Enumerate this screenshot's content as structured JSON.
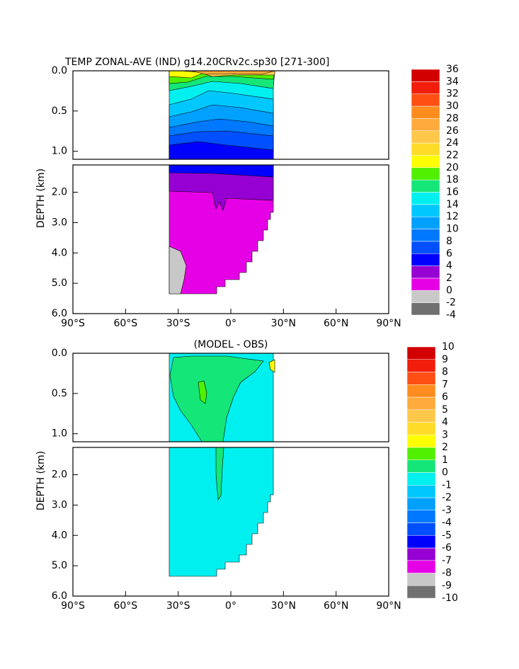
{
  "chart_data": [
    {
      "type": "contour",
      "title": "TEMP ZONAL-AVE (IND) g14.20CRv2c.sp30 [271-300]",
      "ylabel": "DEPTH (km)",
      "xlim": [
        -90,
        90
      ],
      "xticks": [
        {
          "value": -90,
          "label": "90°S"
        },
        {
          "value": -60,
          "label": "60°S"
        },
        {
          "value": -30,
          "label": "30°S"
        },
        {
          "value": 0,
          "label": "0°"
        },
        {
          "value": 30,
          "label": "30°N"
        },
        {
          "value": 60,
          "label": "60°N"
        },
        {
          "value": 90,
          "label": "90°N"
        }
      ],
      "panels": [
        {
          "ylim": [
            0,
            1.1
          ],
          "yticks": [
            {
              "value": 0,
              "label": "0.0"
            },
            0.5,
            {
              "value": 1,
              "label": "1.0"
            }
          ]
        },
        {
          "ylim": [
            1.1,
            6
          ],
          "yticks": [
            {
              "value": 2,
              "label": "2.0"
            },
            {
              "value": 3,
              "label": "3.0"
            },
            {
              "value": 4,
              "label": "4.0"
            },
            {
              "value": 5,
              "label": "5.0"
            },
            {
              "value": 6,
              "label": "6.0"
            }
          ]
        }
      ],
      "colorbar": {
        "levels": [
          -4,
          -2,
          0,
          2,
          4,
          6,
          8,
          10,
          12,
          14,
          16,
          18,
          20,
          22,
          24,
          26,
          28,
          30,
          32,
          34,
          36
        ],
        "colors": [
          "#707070",
          "#c8c8c8",
          "#e600e6",
          "#9600d2",
          "#0000ff",
          "#0050ff",
          "#0078ff",
          "#00a0ff",
          "#00c8ff",
          "#00f0f0",
          "#14e678",
          "#50f000",
          "#ffff00",
          "#ffdc28",
          "#ffc84a",
          "#ffaa3c",
          "#ff8c1e",
          "#ff5014",
          "#f01e0a",
          "#d20000"
        ]
      }
    },
    {
      "type": "contour",
      "title": "(MODEL - OBS)",
      "ylabel": "DEPTH (km)",
      "xlim": [
        -90,
        90
      ],
      "xticks": [
        {
          "value": -90,
          "label": "90°S"
        },
        {
          "value": -60,
          "label": "60°S"
        },
        {
          "value": -30,
          "label": "30°S"
        },
        {
          "value": 0,
          "label": "0°"
        },
        {
          "value": 30,
          "label": "30°N"
        },
        {
          "value": 60,
          "label": "60°N"
        },
        {
          "value": 90,
          "label": "90°N"
        }
      ],
      "panels": [
        {
          "ylim": [
            0,
            1.1
          ],
          "yticks": [
            {
              "value": 0,
              "label": "0.0"
            },
            0.5,
            {
              "value": 1,
              "label": "1.0"
            }
          ]
        },
        {
          "ylim": [
            1.1,
            6
          ],
          "yticks": [
            {
              "value": 2,
              "label": "2.0"
            },
            {
              "value": 3,
              "label": "3.0"
            },
            {
              "value": 4,
              "label": "4.0"
            },
            {
              "value": 5,
              "label": "5.0"
            },
            {
              "value": 6,
              "label": "6.0"
            }
          ]
        }
      ],
      "colorbar": {
        "levels": [
          -10,
          -9,
          -8,
          -7,
          -6,
          -5,
          -4,
          -3,
          -2,
          -1,
          0,
          1,
          2,
          3,
          4,
          5,
          6,
          7,
          8,
          9,
          10
        ],
        "colors": [
          "#707070",
          "#c8c8c8",
          "#e600e6",
          "#9600d2",
          "#0000ff",
          "#0050ff",
          "#0078ff",
          "#00a0ff",
          "#00c8ff",
          "#00f0f0",
          "#14e678",
          "#50f000",
          "#ffff00",
          "#ffdc28",
          "#ffc84a",
          "#ffaa3c",
          "#ff8c1e",
          "#ff5014",
          "#f01e0a",
          "#d20000"
        ]
      }
    }
  ]
}
